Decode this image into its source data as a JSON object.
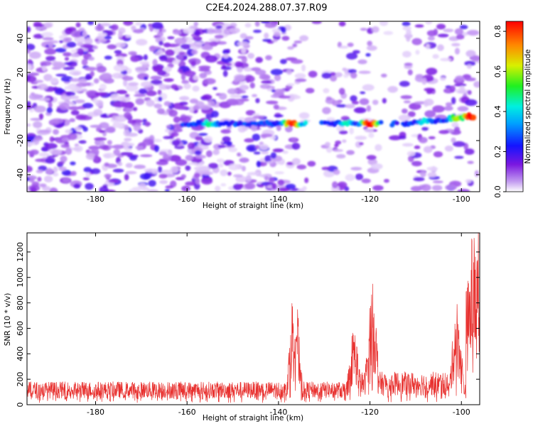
{
  "title": "C2E4.2024.288.07.37.R09",
  "chart_data": [
    {
      "type": "heatmap",
      "title": "C2E4.2024.288.07.37.R09",
      "xlabel": "Height of straight line (km)",
      "ylabel": "Frequency (Hz)",
      "xlim": [
        -195,
        -96
      ],
      "ylim": [
        -50,
        50
      ],
      "x_ticks": [
        -180,
        -160,
        -140,
        -120,
        -100
      ],
      "y_ticks": [
        -40,
        -20,
        0,
        20,
        40
      ],
      "colorbar": {
        "label": "Normalized spectral amplitude",
        "range": [
          0.0,
          0.85
        ],
        "ticks": [
          0.0,
          0.2,
          0.4,
          0.6,
          0.8
        ]
      },
      "signal_band": {
        "frequency_hz": -10,
        "x_range": [
          -161,
          -97
        ],
        "peaks": [
          {
            "x": -155,
            "amplitude": 0.45
          },
          {
            "x": -137,
            "amplitude": 0.8
          },
          {
            "x": -133,
            "amplitude": 0.5
          },
          {
            "x": -125,
            "amplitude": 0.45
          },
          {
            "x": -120,
            "amplitude": 0.85
          },
          {
            "x": -108,
            "amplitude": 0.4
          },
          {
            "x": -101,
            "amplitude": 0.6
          },
          {
            "x": -98,
            "amplitude": 0.85
          }
        ]
      },
      "gaps_x": [
        [
          -134,
          -130
        ],
        [
          -118,
          -113
        ]
      ]
    },
    {
      "type": "line",
      "xlabel": "Height of straight line (km)",
      "ylabel": "SNR (10 * v/v)",
      "xlim": [
        -195,
        -96
      ],
      "ylim": [
        0,
        1350
      ],
      "x_ticks": [
        -180,
        -160,
        -140,
        -120,
        -100
      ],
      "y_ticks": [
        0,
        200,
        400,
        600,
        800,
        1000,
        1200
      ],
      "series": [
        {
          "name": "SNR",
          "color": "#e8312f",
          "baseline": 140,
          "peaks": [
            {
              "x": -136.5,
              "y": 760
            },
            {
              "x": -119.5,
              "y": 740
            },
            {
              "x": -123.5,
              "y": 480
            },
            {
              "x": -101,
              "y": 640
            },
            {
              "x": -97.5,
              "y": 1100
            },
            {
              "x": -96.3,
              "y": 1330
            }
          ]
        }
      ]
    }
  ]
}
